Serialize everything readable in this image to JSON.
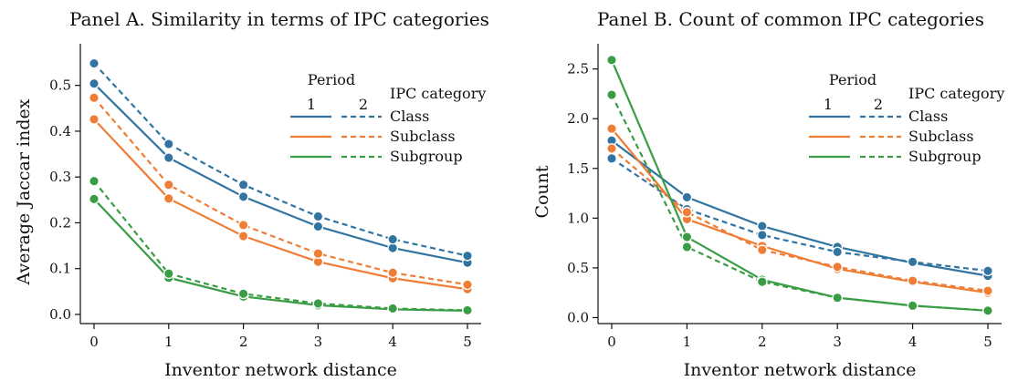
{
  "colors": {
    "class": "#3274a1",
    "subclass": "#ef7d35",
    "subgroup": "#3a9d45"
  },
  "chart_data": [
    {
      "type": "line",
      "title": "Panel A. Similarity in terms of IPC categories",
      "xlabel": "Inventor network distance",
      "ylabel": "Average Jaccar index",
      "x": [
        0,
        1,
        2,
        3,
        4,
        5
      ],
      "xlim": [
        0,
        5
      ],
      "ylim": [
        -0.02,
        0.575
      ],
      "yticks": [
        0.0,
        0.1,
        0.2,
        0.3,
        0.4,
        0.5
      ],
      "ytick_labels": [
        "0.0",
        "0.1",
        "0.2",
        "0.3",
        "0.4",
        "0.5"
      ],
      "xtick_labels": [
        "0",
        "1",
        "2",
        "3",
        "4",
        "5"
      ],
      "legend": {
        "period_title": "Period",
        "period_labels": [
          "1",
          "2"
        ],
        "category_title": "IPC category",
        "placement": "top-right"
      },
      "series": [
        {
          "name": "Class",
          "category": "class",
          "period": "1",
          "values": [
            0.504,
            0.342,
            0.257,
            0.192,
            0.145,
            0.113
          ]
        },
        {
          "name": "Class",
          "category": "class",
          "period": "2",
          "values": [
            0.548,
            0.372,
            0.283,
            0.214,
            0.164,
            0.128
          ]
        },
        {
          "name": "Subclass",
          "category": "subclass",
          "period": "1",
          "values": [
            0.426,
            0.253,
            0.171,
            0.115,
            0.079,
            0.055
          ]
        },
        {
          "name": "Subclass",
          "category": "subclass",
          "period": "2",
          "values": [
            0.473,
            0.283,
            0.195,
            0.133,
            0.091,
            0.065
          ]
        },
        {
          "name": "Subgroup",
          "category": "subgroup",
          "period": "1",
          "values": [
            0.252,
            0.08,
            0.039,
            0.02,
            0.011,
            0.008
          ]
        },
        {
          "name": "Subgroup",
          "category": "subgroup",
          "period": "2",
          "values": [
            0.291,
            0.089,
            0.045,
            0.024,
            0.013,
            0.009
          ]
        }
      ]
    },
    {
      "type": "line",
      "title": "Panel B. Count of common IPC categories",
      "xlabel": "Inventor network distance",
      "ylabel": "Count",
      "x": [
        0,
        1,
        2,
        3,
        4,
        5
      ],
      "xlim": [
        0,
        5
      ],
      "ylim": [
        -0.06,
        2.68
      ],
      "yticks": [
        0.0,
        0.5,
        1.0,
        1.5,
        2.0,
        2.5
      ],
      "ytick_labels": [
        "0.0",
        "0.5",
        "1.0",
        "1.5",
        "2.0",
        "2.5"
      ],
      "xtick_labels": [
        "0",
        "1",
        "2",
        "3",
        "4",
        "5"
      ],
      "legend": {
        "period_title": "Period",
        "period_labels": [
          "1",
          "2"
        ],
        "category_title": "IPC category",
        "placement": "top-right"
      },
      "series": [
        {
          "name": "Class",
          "category": "class",
          "period": "1",
          "values": [
            1.78,
            1.21,
            0.92,
            0.71,
            0.55,
            0.42
          ]
        },
        {
          "name": "Class",
          "category": "class",
          "period": "2",
          "values": [
            1.6,
            1.09,
            0.83,
            0.66,
            0.56,
            0.47
          ]
        },
        {
          "name": "Subclass",
          "category": "subclass",
          "period": "1",
          "values": [
            1.9,
            0.99,
            0.72,
            0.49,
            0.36,
            0.25
          ]
        },
        {
          "name": "Subclass",
          "category": "subclass",
          "period": "2",
          "values": [
            1.7,
            1.06,
            0.68,
            0.51,
            0.37,
            0.27
          ]
        },
        {
          "name": "Subgroup",
          "category": "subgroup",
          "period": "1",
          "values": [
            2.59,
            0.81,
            0.38,
            0.2,
            0.12,
            0.07
          ]
        },
        {
          "name": "Subgroup",
          "category": "subgroup",
          "period": "2",
          "values": [
            2.24,
            0.71,
            0.36,
            0.2,
            0.12,
            0.07
          ]
        }
      ]
    }
  ]
}
